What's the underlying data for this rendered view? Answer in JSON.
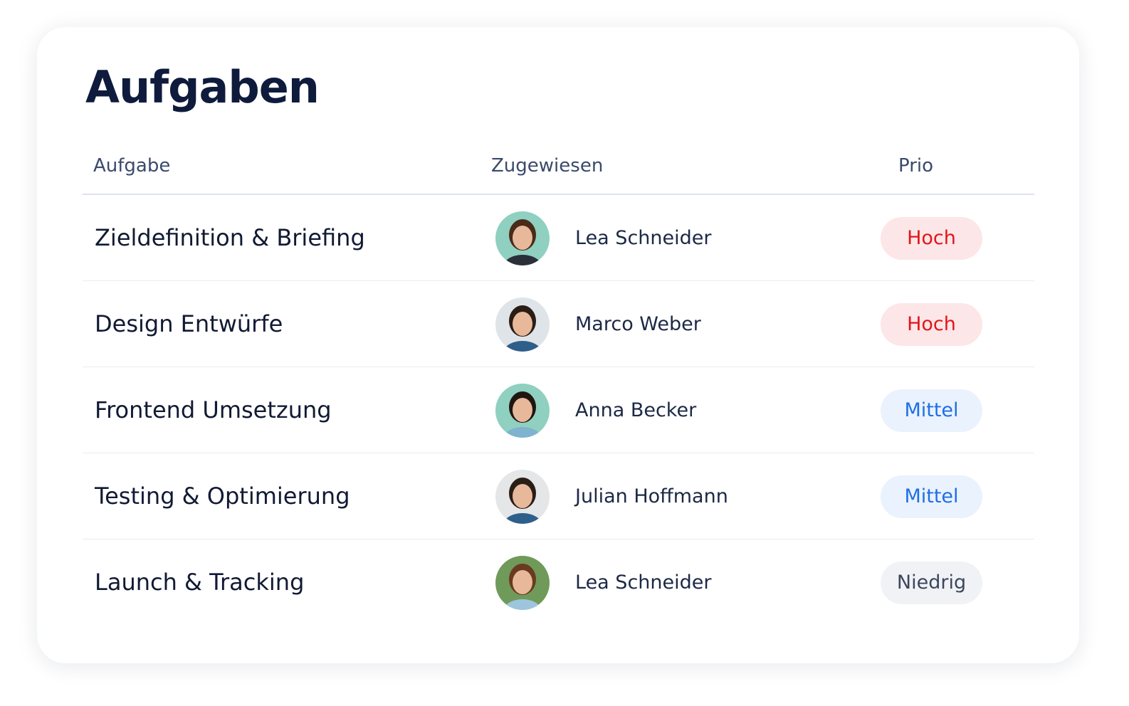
{
  "header": {
    "title": "Aufgaben"
  },
  "table": {
    "columns": [
      "Aufgabe",
      "Zugewiesen",
      "Prio"
    ],
    "rows": [
      {
        "task": "Zieldefinition & Briefing",
        "assignee": "Lea Schneider",
        "priority": {
          "label": "Hoch",
          "color": "#e0161b",
          "background": "#fde6e7"
        }
      },
      {
        "task": "Design Entwürfe",
        "assignee": "Marco Weber",
        "priority": {
          "label": "Hoch",
          "color": "#e0161b",
          "background": "#fde6e7"
        }
      },
      {
        "task": "Frontend Umsetzung",
        "assignee": "Anna Becker",
        "priority": {
          "label": "Mittel",
          "color": "#1f6fe5",
          "background": "#eaf2fe"
        }
      },
      {
        "task": "Testing & Optimierung",
        "assignee": "Julian Hoffmann",
        "priority": {
          "label": "Mittel",
          "color": "#1f6fe5",
          "background": "#eaf2fe"
        }
      },
      {
        "task": "Launch & Tracking",
        "assignee": "Lea Schneider",
        "priority": {
          "label": "Niedrig",
          "color": "#3b475e",
          "background": "#f1f2f5"
        }
      }
    ]
  }
}
